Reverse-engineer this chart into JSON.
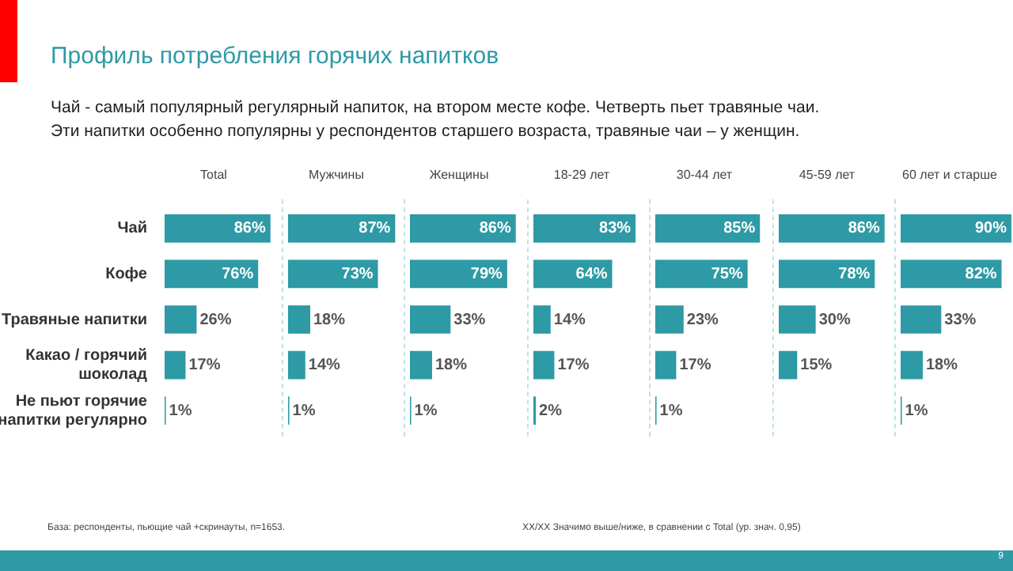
{
  "chart_data": [
    {
      "type": "other",
      "title": "Профиль потребления горячих напитков",
      "subtitle": "Чай - самый популярный регулярный напиток, на втором месте кофе. Четверть пьет травяные чаи.\nЭти напитки особенно популярны у респондентов старшего возраста, травяные чаи – у женщин.",
      "annotations": [
        "База: респонденты, пьющие чай +скринауты, n=1653.",
        "XX/XX  Значимо выше/ниже, в сравнении с Total (ур. знач. 0,95)",
        "9"
      ]
    },
    {
      "type": "bar",
      "orientation": "horizontal",
      "title": "Total",
      "categories": [
        "Чай",
        "Кофе",
        "Травяные напитки",
        "Какао / горячий шоколад",
        "Не пьют горячие напитки регулярно"
      ],
      "values": [
        86,
        76,
        26,
        17,
        1
      ],
      "value_labels": [
        "86%",
        "76%",
        "26%",
        "17%",
        "1%"
      ],
      "color": "#2e9aa5",
      "tick_labels": "y",
      "grid": false,
      "legend": false
    },
    {
      "type": "bar",
      "orientation": "horizontal",
      "title": "Мужчины",
      "categories": [
        null,
        null,
        null,
        null,
        null
      ],
      "values": [
        87,
        73,
        18,
        14,
        1
      ],
      "value_labels": [
        "87%",
        "73%",
        "18%",
        "14%",
        "1%"
      ],
      "color": "#2e9aa5",
      "tick_labels": false,
      "grid": false,
      "legend": false
    },
    {
      "type": "bar",
      "orientation": "horizontal",
      "title": "Женщины",
      "categories": [
        null,
        null,
        null,
        null,
        null
      ],
      "values": [
        86,
        79,
        33,
        18,
        1
      ],
      "value_labels": [
        "86%",
        "79%",
        "33%",
        "18%",
        "1%"
      ],
      "color": "#2e9aa5",
      "tick_labels": false,
      "grid": false,
      "legend": false
    },
    {
      "type": "bar",
      "orientation": "horizontal",
      "title": "18-29 лет",
      "categories": [
        null,
        null,
        null,
        null,
        null
      ],
      "values": [
        83,
        64,
        14,
        17,
        2
      ],
      "value_labels": [
        "83%",
        "64%",
        "14%",
        "17%",
        "2%"
      ],
      "color": "#2e9aa5",
      "tick_labels": false,
      "grid": false,
      "legend": false
    },
    {
      "type": "bar",
      "orientation": "horizontal",
      "title": "30-44 лет",
      "categories": [
        null,
        null,
        null,
        null,
        null
      ],
      "values": [
        85,
        75,
        23,
        17,
        1
      ],
      "value_labels": [
        "85%",
        "75%",
        "23%",
        "17%",
        "1%"
      ],
      "color": "#2e9aa5",
      "tick_labels": false,
      "grid": false,
      "legend": false
    },
    {
      "type": "bar",
      "orientation": "horizontal",
      "title": "45-59 лет",
      "categories": [
        null,
        null,
        null,
        null,
        null
      ],
      "values": [
        86,
        78,
        30,
        15,
        null
      ],
      "value_labels": [
        "86%",
        "78%",
        "30%",
        "15%",
        null
      ],
      "color": "#2e9aa5",
      "tick_labels": false,
      "grid": false,
      "legend": false
    },
    {
      "type": "bar",
      "orientation": "horizontal",
      "title": "60 лет и старше",
      "categories": [
        null,
        null,
        null,
        null,
        null
      ],
      "values": [
        90,
        82,
        33,
        18,
        1
      ],
      "value_labels": [
        "90%",
        "82%",
        "33%",
        "18%",
        "1%"
      ],
      "color": "#2e9aa5",
      "tick_labels": false,
      "grid": false,
      "legend": false
    }
  ]
}
